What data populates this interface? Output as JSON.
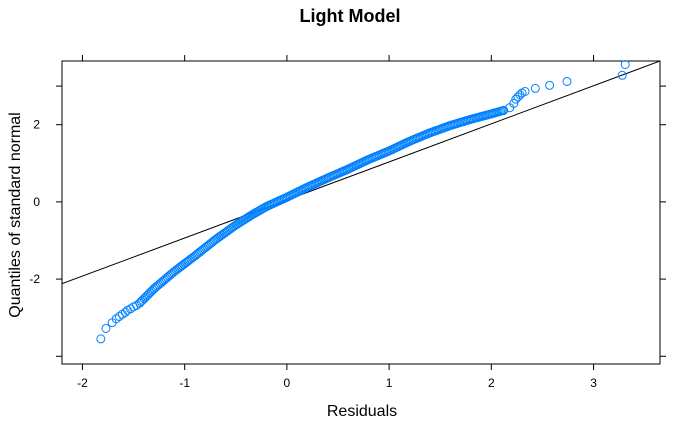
{
  "chart_data": {
    "type": "scatter",
    "title": "Light Model",
    "xlabel": "Residuals",
    "ylabel": "Quantiles of standard normal",
    "xlim": [
      -2.2,
      3.65
    ],
    "ylim": [
      -4.2,
      3.65
    ],
    "xticks": [
      -2,
      -1,
      0,
      1,
      2,
      3
    ],
    "xtick_labels": [
      "-2",
      "-1",
      "0",
      "1",
      "2",
      "3"
    ],
    "yticks": [
      -2,
      0,
      2
    ],
    "ytick_labels": [
      "-2",
      "0",
      "2"
    ],
    "grid": false,
    "marker_color": "#0080ff",
    "reference_line": {
      "x": [
        -2.2,
        3.65
      ],
      "y": [
        -2.12,
        3.65
      ],
      "color": "#000000"
    },
    "points_tail_lower": [
      [
        -1.82,
        -3.55
      ],
      [
        -1.77,
        -3.28
      ],
      [
        -1.71,
        -3.13
      ],
      [
        -1.67,
        -3.03
      ],
      [
        -1.64,
        -2.97
      ],
      [
        -1.61,
        -2.91
      ],
      [
        -1.58,
        -2.86
      ],
      [
        -1.56,
        -2.81
      ],
      [
        -1.53,
        -2.77
      ],
      [
        -1.5,
        -2.72
      ],
      [
        -1.47,
        -2.68
      ],
      [
        -1.44,
        -2.62
      ]
    ],
    "points_tail_upper": [
      [
        2.12,
        2.37
      ],
      [
        2.18,
        2.44
      ],
      [
        2.22,
        2.55
      ],
      [
        2.24,
        2.66
      ],
      [
        2.26,
        2.72
      ],
      [
        2.28,
        2.77
      ],
      [
        2.3,
        2.82
      ],
      [
        2.33,
        2.86
      ],
      [
        2.43,
        2.94
      ],
      [
        2.57,
        3.02
      ],
      [
        2.74,
        3.12
      ],
      [
        3.28,
        3.28
      ],
      [
        3.31,
        3.56
      ]
    ],
    "body_curve": {
      "x": [
        -1.44,
        -1.3,
        -1.1,
        -0.9,
        -0.7,
        -0.5,
        -0.35,
        -0.2,
        0,
        0.2,
        0.4,
        0.6,
        0.8,
        1.0,
        1.2,
        1.4,
        1.6,
        1.8,
        2.0,
        2.12
      ],
      "y": [
        -2.62,
        -2.25,
        -1.8,
        -1.4,
        -0.98,
        -0.6,
        -0.35,
        -0.12,
        0.12,
        0.38,
        0.62,
        0.85,
        1.1,
        1.32,
        1.57,
        1.79,
        1.98,
        2.14,
        2.28,
        2.37
      ]
    },
    "body_point_count": 250
  }
}
